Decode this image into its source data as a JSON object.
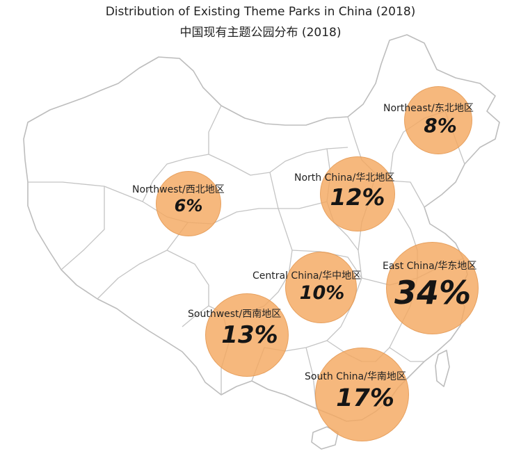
{
  "title_en": "Distribution of Existing Theme Parks in China (2018)",
  "title_zh": "中国现有主题公园分布 (2018)",
  "accent_color": "#f4a860",
  "regions": [
    {
      "id": "northeast",
      "label": "Northeast/东北地区",
      "percent": "8%",
      "value": 8
    },
    {
      "id": "north",
      "label": "North China/华北地区",
      "percent": "12%",
      "value": 12
    },
    {
      "id": "northwest",
      "label": "Northwest/西北地区",
      "percent": "6%",
      "value": 6
    },
    {
      "id": "central",
      "label": "Central China/华中地区",
      "percent": "10%",
      "value": 10
    },
    {
      "id": "east",
      "label": "East China/华东地区",
      "percent": "34%",
      "value": 34
    },
    {
      "id": "southwest",
      "label": "Southwest/西南地区",
      "percent": "13%",
      "value": 13
    },
    {
      "id": "south",
      "label": "South China/华南地区",
      "percent": "17%",
      "value": 17
    }
  ]
}
